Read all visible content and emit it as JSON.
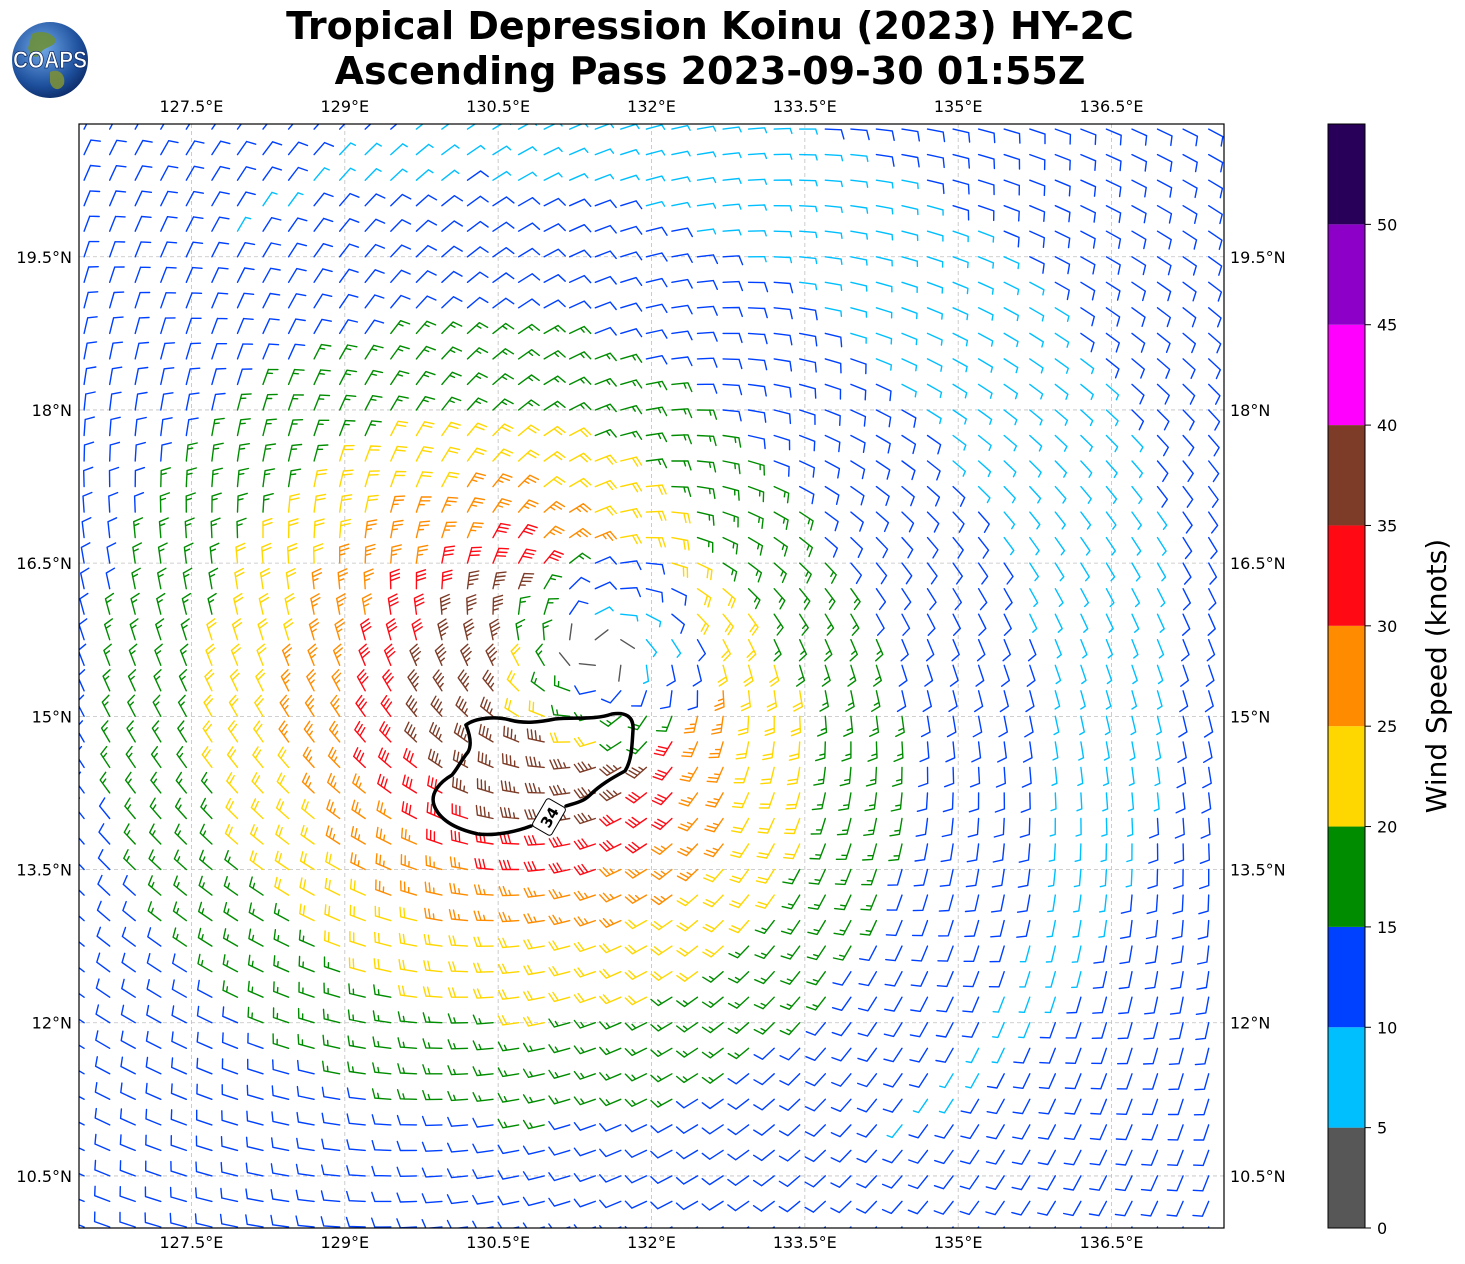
{
  "title": {
    "line1": "Tropical Depression Koinu (2023) HY-2C",
    "line2": "Ascending Pass 2023-09-30 01:55Z"
  },
  "logo": {
    "text": "COAPS"
  },
  "map": {
    "lon_range": [
      126.4,
      137.6
    ],
    "lat_range": [
      9.99,
      20.8
    ],
    "lon_ticks": [
      "127.5°E",
      "129°E",
      "130.5°E",
      "132°E",
      "133.5°E",
      "135°E",
      "136.5°E"
    ],
    "lon_tick_values": [
      127.5,
      129,
      130.5,
      132,
      133.5,
      135,
      136.5
    ],
    "lat_ticks": [
      "19.5°N",
      "18°N",
      "16.5°N",
      "15°N",
      "13.5°N",
      "12°N",
      "10.5°N"
    ],
    "lat_tick_values": [
      19.5,
      18,
      16.5,
      15,
      13.5,
      12,
      10.5
    ],
    "gridlines": true,
    "storm_center": {
      "lon": 131.5,
      "lat": 15.6
    },
    "contour_label": "34"
  },
  "colorbar": {
    "label": "Wind Speed (knots)",
    "ticks": [
      "0",
      "5",
      "10",
      "15",
      "20",
      "25",
      "30",
      "35",
      "40",
      "45",
      "50"
    ],
    "bins": [
      {
        "min": 0,
        "max": 5,
        "color": "#575757"
      },
      {
        "min": 5,
        "max": 10,
        "color": "#00bfff"
      },
      {
        "min": 10,
        "max": 15,
        "color": "#0040ff"
      },
      {
        "min": 15,
        "max": 20,
        "color": "#008c00"
      },
      {
        "min": 20,
        "max": 25,
        "color": "#ffd700"
      },
      {
        "min": 25,
        "max": 30,
        "color": "#ff8c00"
      },
      {
        "min": 30,
        "max": 35,
        "color": "#ff0a14"
      },
      {
        "min": 35,
        "max": 40,
        "color": "#7d3c28"
      },
      {
        "min": 40,
        "max": 45,
        "color": "#ff00ff"
      },
      {
        "min": 45,
        "max": 50,
        "color": "#8c00c8"
      },
      {
        "min": 50,
        "max": 55,
        "color": "#28005a"
      }
    ]
  }
}
